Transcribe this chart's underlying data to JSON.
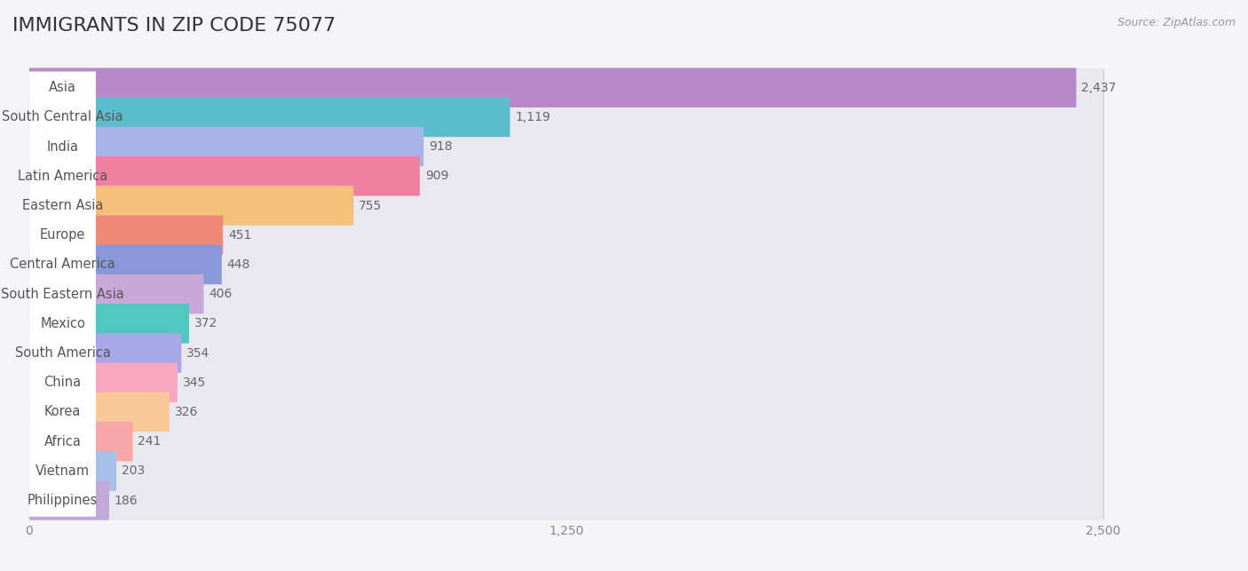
{
  "title": "IMMIGRANTS IN ZIP CODE 75077",
  "source": "Source: ZipAtlas.com",
  "categories": [
    "Asia",
    "South Central Asia",
    "India",
    "Latin America",
    "Eastern Asia",
    "Europe",
    "Central America",
    "South Eastern Asia",
    "Mexico",
    "South America",
    "China",
    "Korea",
    "Africa",
    "Vietnam",
    "Philippines"
  ],
  "values": [
    2437,
    1119,
    918,
    909,
    755,
    451,
    448,
    406,
    372,
    354,
    345,
    326,
    241,
    203,
    186
  ],
  "colors": [
    "#b888c8",
    "#5bbdcc",
    "#a8b4e8",
    "#f080a0",
    "#f5c07a",
    "#f08878",
    "#8898d8",
    "#c8a8d8",
    "#50c8c0",
    "#a8a8e8",
    "#f8a8c0",
    "#f8c898",
    "#f8a8a8",
    "#a8c0e8",
    "#c0a8d8"
  ],
  "xlim": [
    0,
    2500
  ],
  "xticks": [
    0,
    1250,
    2500
  ],
  "bg_color": "#f5f5f8",
  "bar_bg_color": "#e8e8ee",
  "title_fontsize": 16,
  "label_fontsize": 10.5,
  "value_fontsize": 10
}
